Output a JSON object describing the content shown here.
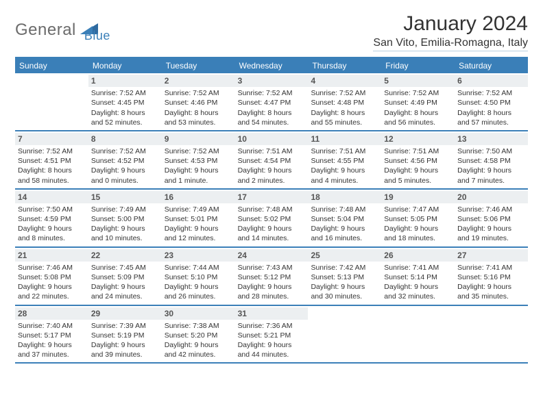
{
  "logo": {
    "part1": "General",
    "part2": "Blue"
  },
  "title": "January 2024",
  "location": "San Vito, Emilia-Romagna, Italy",
  "colors": {
    "brand_blue": "#3a7fb8",
    "header_bg": "#3a7fb8",
    "row_border": "#3a7fb8",
    "daynum_bg": "#eceff1",
    "text": "#333333",
    "logo_gray": "#6b6b6b"
  },
  "day_headers": [
    "Sunday",
    "Monday",
    "Tuesday",
    "Wednesday",
    "Thursday",
    "Friday",
    "Saturday"
  ],
  "weeks": [
    [
      null,
      {
        "n": "1",
        "sr": "Sunrise: 7:52 AM",
        "ss": "Sunset: 4:45 PM",
        "d1": "Daylight: 8 hours",
        "d2": "and 52 minutes."
      },
      {
        "n": "2",
        "sr": "Sunrise: 7:52 AM",
        "ss": "Sunset: 4:46 PM",
        "d1": "Daylight: 8 hours",
        "d2": "and 53 minutes."
      },
      {
        "n": "3",
        "sr": "Sunrise: 7:52 AM",
        "ss": "Sunset: 4:47 PM",
        "d1": "Daylight: 8 hours",
        "d2": "and 54 minutes."
      },
      {
        "n": "4",
        "sr": "Sunrise: 7:52 AM",
        "ss": "Sunset: 4:48 PM",
        "d1": "Daylight: 8 hours",
        "d2": "and 55 minutes."
      },
      {
        "n": "5",
        "sr": "Sunrise: 7:52 AM",
        "ss": "Sunset: 4:49 PM",
        "d1": "Daylight: 8 hours",
        "d2": "and 56 minutes."
      },
      {
        "n": "6",
        "sr": "Sunrise: 7:52 AM",
        "ss": "Sunset: 4:50 PM",
        "d1": "Daylight: 8 hours",
        "d2": "and 57 minutes."
      }
    ],
    [
      {
        "n": "7",
        "sr": "Sunrise: 7:52 AM",
        "ss": "Sunset: 4:51 PM",
        "d1": "Daylight: 8 hours",
        "d2": "and 58 minutes."
      },
      {
        "n": "8",
        "sr": "Sunrise: 7:52 AM",
        "ss": "Sunset: 4:52 PM",
        "d1": "Daylight: 9 hours",
        "d2": "and 0 minutes."
      },
      {
        "n": "9",
        "sr": "Sunrise: 7:52 AM",
        "ss": "Sunset: 4:53 PM",
        "d1": "Daylight: 9 hours",
        "d2": "and 1 minute."
      },
      {
        "n": "10",
        "sr": "Sunrise: 7:51 AM",
        "ss": "Sunset: 4:54 PM",
        "d1": "Daylight: 9 hours",
        "d2": "and 2 minutes."
      },
      {
        "n": "11",
        "sr": "Sunrise: 7:51 AM",
        "ss": "Sunset: 4:55 PM",
        "d1": "Daylight: 9 hours",
        "d2": "and 4 minutes."
      },
      {
        "n": "12",
        "sr": "Sunrise: 7:51 AM",
        "ss": "Sunset: 4:56 PM",
        "d1": "Daylight: 9 hours",
        "d2": "and 5 minutes."
      },
      {
        "n": "13",
        "sr": "Sunrise: 7:50 AM",
        "ss": "Sunset: 4:58 PM",
        "d1": "Daylight: 9 hours",
        "d2": "and 7 minutes."
      }
    ],
    [
      {
        "n": "14",
        "sr": "Sunrise: 7:50 AM",
        "ss": "Sunset: 4:59 PM",
        "d1": "Daylight: 9 hours",
        "d2": "and 8 minutes."
      },
      {
        "n": "15",
        "sr": "Sunrise: 7:49 AM",
        "ss": "Sunset: 5:00 PM",
        "d1": "Daylight: 9 hours",
        "d2": "and 10 minutes."
      },
      {
        "n": "16",
        "sr": "Sunrise: 7:49 AM",
        "ss": "Sunset: 5:01 PM",
        "d1": "Daylight: 9 hours",
        "d2": "and 12 minutes."
      },
      {
        "n": "17",
        "sr": "Sunrise: 7:48 AM",
        "ss": "Sunset: 5:02 PM",
        "d1": "Daylight: 9 hours",
        "d2": "and 14 minutes."
      },
      {
        "n": "18",
        "sr": "Sunrise: 7:48 AM",
        "ss": "Sunset: 5:04 PM",
        "d1": "Daylight: 9 hours",
        "d2": "and 16 minutes."
      },
      {
        "n": "19",
        "sr": "Sunrise: 7:47 AM",
        "ss": "Sunset: 5:05 PM",
        "d1": "Daylight: 9 hours",
        "d2": "and 18 minutes."
      },
      {
        "n": "20",
        "sr": "Sunrise: 7:46 AM",
        "ss": "Sunset: 5:06 PM",
        "d1": "Daylight: 9 hours",
        "d2": "and 19 minutes."
      }
    ],
    [
      {
        "n": "21",
        "sr": "Sunrise: 7:46 AM",
        "ss": "Sunset: 5:08 PM",
        "d1": "Daylight: 9 hours",
        "d2": "and 22 minutes."
      },
      {
        "n": "22",
        "sr": "Sunrise: 7:45 AM",
        "ss": "Sunset: 5:09 PM",
        "d1": "Daylight: 9 hours",
        "d2": "and 24 minutes."
      },
      {
        "n": "23",
        "sr": "Sunrise: 7:44 AM",
        "ss": "Sunset: 5:10 PM",
        "d1": "Daylight: 9 hours",
        "d2": "and 26 minutes."
      },
      {
        "n": "24",
        "sr": "Sunrise: 7:43 AM",
        "ss": "Sunset: 5:12 PM",
        "d1": "Daylight: 9 hours",
        "d2": "and 28 minutes."
      },
      {
        "n": "25",
        "sr": "Sunrise: 7:42 AM",
        "ss": "Sunset: 5:13 PM",
        "d1": "Daylight: 9 hours",
        "d2": "and 30 minutes."
      },
      {
        "n": "26",
        "sr": "Sunrise: 7:41 AM",
        "ss": "Sunset: 5:14 PM",
        "d1": "Daylight: 9 hours",
        "d2": "and 32 minutes."
      },
      {
        "n": "27",
        "sr": "Sunrise: 7:41 AM",
        "ss": "Sunset: 5:16 PM",
        "d1": "Daylight: 9 hours",
        "d2": "and 35 minutes."
      }
    ],
    [
      {
        "n": "28",
        "sr": "Sunrise: 7:40 AM",
        "ss": "Sunset: 5:17 PM",
        "d1": "Daylight: 9 hours",
        "d2": "and 37 minutes."
      },
      {
        "n": "29",
        "sr": "Sunrise: 7:39 AM",
        "ss": "Sunset: 5:19 PM",
        "d1": "Daylight: 9 hours",
        "d2": "and 39 minutes."
      },
      {
        "n": "30",
        "sr": "Sunrise: 7:38 AM",
        "ss": "Sunset: 5:20 PM",
        "d1": "Daylight: 9 hours",
        "d2": "and 42 minutes."
      },
      {
        "n": "31",
        "sr": "Sunrise: 7:36 AM",
        "ss": "Sunset: 5:21 PM",
        "d1": "Daylight: 9 hours",
        "d2": "and 44 minutes."
      },
      null,
      null,
      null
    ]
  ]
}
